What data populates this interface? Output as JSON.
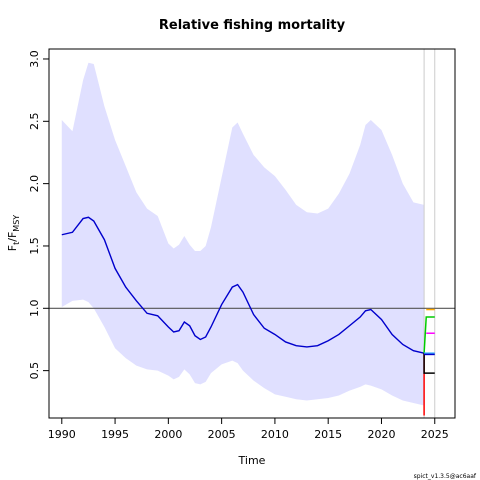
{
  "chart_data": {
    "type": "line",
    "title": "Relative fishing mortality",
    "xlabel": "Time",
    "ylabel_main": "F",
    "ylabel_sub1": "t",
    "ylabel_sep": "/F",
    "ylabel_sub2": "MSY",
    "xlim": [
      1988.8,
      2026.9
    ],
    "ylim": [
      0.12,
      3.08
    ],
    "x_ticks": [
      1990,
      1995,
      2000,
      2005,
      2010,
      2015,
      2020,
      2025
    ],
    "y_ticks": [
      0.5,
      1.0,
      1.5,
      2.0,
      2.5,
      3.0
    ],
    "reference_line": 1.0,
    "vertical_lines": [
      2024,
      2025
    ],
    "colors": {
      "estimate": "#0000cc",
      "ci_fill": "#e0e0ff",
      "reference": "#555555",
      "vline": "#cccccc"
    },
    "series": [
      {
        "role": "estimate",
        "x": [
          1990,
          1991,
          1992,
          1992.5,
          1993,
          1994,
          1995,
          1996,
          1997,
          1998,
          1999,
          2000,
          2000.5,
          2001,
          2001.5,
          2002,
          2002.5,
          2003,
          2003.5,
          2004,
          2005,
          2006,
          2006.5,
          2007,
          2008,
          2009,
          2010,
          2011,
          2012,
          2013,
          2014,
          2015,
          2016,
          2017,
          2018,
          2018.5,
          2019,
          2020,
          2021,
          2022,
          2023,
          2024
        ],
        "y": [
          1.59,
          1.61,
          1.72,
          1.73,
          1.7,
          1.55,
          1.32,
          1.17,
          1.06,
          0.96,
          0.94,
          0.85,
          0.81,
          0.82,
          0.89,
          0.86,
          0.78,
          0.75,
          0.77,
          0.85,
          1.03,
          1.17,
          1.19,
          1.13,
          0.95,
          0.84,
          0.79,
          0.73,
          0.7,
          0.69,
          0.7,
          0.74,
          0.79,
          0.86,
          0.93,
          0.98,
          0.99,
          0.91,
          0.79,
          0.71,
          0.66,
          0.64
        ]
      },
      {
        "role": "ci_upper",
        "x": [
          1990,
          1991,
          1992,
          1992.5,
          1993,
          1994,
          1995,
          1996,
          1997,
          1998,
          1999,
          2000,
          2000.5,
          2001,
          2001.5,
          2002,
          2002.5,
          2003,
          2003.5,
          2004,
          2005,
          2006,
          2006.5,
          2007,
          2008,
          2009,
          2010,
          2011,
          2012,
          2013,
          2014,
          2015,
          2016,
          2017,
          2018,
          2018.5,
          2019,
          2020,
          2021,
          2022,
          2023,
          2024
        ],
        "y": [
          2.51,
          2.42,
          2.83,
          2.97,
          2.96,
          2.62,
          2.35,
          2.14,
          1.93,
          1.8,
          1.74,
          1.52,
          1.48,
          1.51,
          1.58,
          1.51,
          1.46,
          1.46,
          1.5,
          1.65,
          2.05,
          2.45,
          2.49,
          2.4,
          2.23,
          2.13,
          2.06,
          1.95,
          1.83,
          1.77,
          1.76,
          1.8,
          1.92,
          2.08,
          2.31,
          2.47,
          2.51,
          2.43,
          2.23,
          2.0,
          1.85,
          1.83
        ]
      },
      {
        "role": "ci_lower",
        "x": [
          1990,
          1991,
          1992,
          1992.5,
          1993,
          1994,
          1995,
          1996,
          1997,
          1998,
          1999,
          2000,
          2000.5,
          2001,
          2001.5,
          2002,
          2002.5,
          2003,
          2003.5,
          2004,
          2005,
          2006,
          2006.5,
          2007,
          2008,
          2009,
          2010,
          2011,
          2012,
          2013,
          2014,
          2015,
          2016,
          2017,
          2018,
          2018.5,
          2019,
          2020,
          2021,
          2022,
          2023,
          2024
        ],
        "y": [
          1.01,
          1.06,
          1.07,
          1.05,
          1.0,
          0.85,
          0.68,
          0.6,
          0.54,
          0.51,
          0.5,
          0.46,
          0.43,
          0.45,
          0.51,
          0.47,
          0.4,
          0.39,
          0.41,
          0.48,
          0.55,
          0.58,
          0.56,
          0.5,
          0.42,
          0.36,
          0.31,
          0.29,
          0.27,
          0.26,
          0.27,
          0.28,
          0.3,
          0.34,
          0.37,
          0.39,
          0.38,
          0.35,
          0.3,
          0.26,
          0.24,
          0.22
        ]
      }
    ],
    "forecast_segments": [
      {
        "color": "#ff0000",
        "x": [
          2024,
          2024
        ],
        "y": [
          0.64,
          0.14
        ]
      },
      {
        "color": "#000000",
        "x": [
          2024,
          2024,
          2025
        ],
        "y": [
          0.64,
          0.48,
          0.48
        ]
      },
      {
        "color": "#00cc00",
        "x": [
          2024,
          2024.2,
          2025
        ],
        "y": [
          0.64,
          0.93,
          0.93
        ]
      },
      {
        "color": "#ff00ff",
        "x": [
          2024.2,
          2025
        ],
        "y": [
          0.8,
          0.8
        ]
      },
      {
        "color": "#ffaa00",
        "x": [
          2024.2,
          2025
        ],
        "y": [
          0.99,
          0.99
        ]
      },
      {
        "color": "#33aaff",
        "x": [
          2024,
          2025
        ],
        "y": [
          0.64,
          0.64
        ]
      },
      {
        "color": "#0000cc",
        "x": [
          2024,
          2025
        ],
        "y": [
          0.63,
          0.63
        ]
      }
    ],
    "footer": "spict_v1.3.5@ac6aaf"
  }
}
